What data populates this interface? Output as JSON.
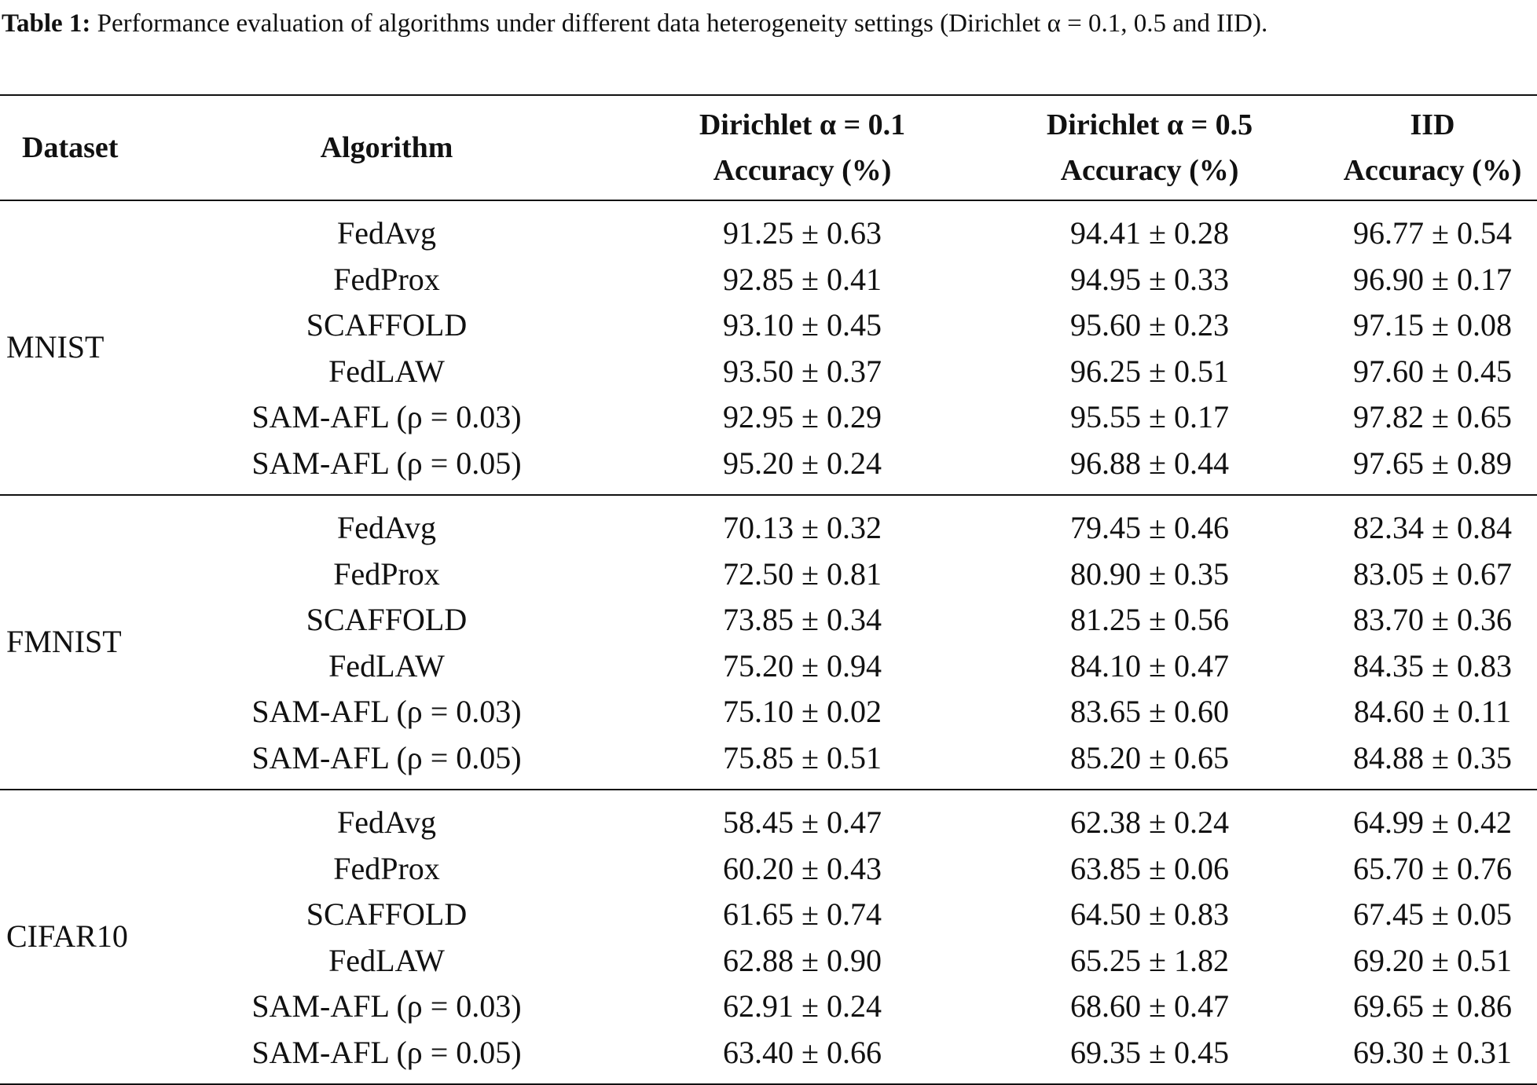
{
  "caption": {
    "label": "Table 1:",
    "text": "Performance evaluation of algorithms under different data heterogeneity settings (Dirichlet α = 0.1, 0.5 and IID)."
  },
  "table": {
    "headers": {
      "dataset": "Dataset",
      "algorithm": "Algorithm",
      "col1_line1": "Dirichlet α = 0.1",
      "col1_line2": "Accuracy (%)",
      "col2_line1": "Dirichlet α = 0.5",
      "col2_line2": "Accuracy (%)",
      "col3_line1": "IID",
      "col3_line2": "Accuracy (%)"
    },
    "groups": [
      {
        "dataset": "MNIST",
        "rows": [
          {
            "algorithm": "FedAvg",
            "a01": "91.25 ± 0.63",
            "a05": "94.41 ± 0.28",
            "iid": "96.77 ± 0.54"
          },
          {
            "algorithm": "FedProx",
            "a01": "92.85 ± 0.41",
            "a05": "94.95 ± 0.33",
            "iid": "96.90 ± 0.17"
          },
          {
            "algorithm": "SCAFFOLD",
            "a01": "93.10 ± 0.45",
            "a05": "95.60 ± 0.23",
            "iid": "97.15 ± 0.08"
          },
          {
            "algorithm": "FedLAW",
            "a01": "93.50 ± 0.37",
            "a05": "96.25 ± 0.51",
            "iid": "97.60 ± 0.45"
          },
          {
            "algorithm": "SAM-AFL (ρ = 0.03)",
            "a01": "92.95 ± 0.29",
            "a05": "95.55 ± 0.17",
            "iid": "97.82 ± 0.65"
          },
          {
            "algorithm": "SAM-AFL (ρ = 0.05)",
            "a01": "95.20 ± 0.24",
            "a05": "96.88 ± 0.44",
            "iid": "97.65 ± 0.89"
          }
        ]
      },
      {
        "dataset": "FMNIST",
        "rows": [
          {
            "algorithm": "FedAvg",
            "a01": "70.13 ± 0.32",
            "a05": "79.45 ± 0.46",
            "iid": "82.34 ± 0.84"
          },
          {
            "algorithm": "FedProx",
            "a01": "72.50 ± 0.81",
            "a05": "80.90 ± 0.35",
            "iid": "83.05 ± 0.67"
          },
          {
            "algorithm": "SCAFFOLD",
            "a01": "73.85 ± 0.34",
            "a05": "81.25 ± 0.56",
            "iid": "83.70 ± 0.36"
          },
          {
            "algorithm": "FedLAW",
            "a01": "75.20 ± 0.94",
            "a05": "84.10 ± 0.47",
            "iid": "84.35 ± 0.83"
          },
          {
            "algorithm": "SAM-AFL (ρ = 0.03)",
            "a01": "75.10 ± 0.02",
            "a05": "83.65 ± 0.60",
            "iid": "84.60 ± 0.11"
          },
          {
            "algorithm": "SAM-AFL (ρ = 0.05)",
            "a01": "75.85 ± 0.51",
            "a05": "85.20 ± 0.65",
            "iid": "84.88 ± 0.35"
          }
        ]
      },
      {
        "dataset": "CIFAR10",
        "rows": [
          {
            "algorithm": "FedAvg",
            "a01": "58.45 ± 0.47",
            "a05": "62.38 ± 0.24",
            "iid": "64.99 ± 0.42"
          },
          {
            "algorithm": "FedProx",
            "a01": "60.20 ± 0.43",
            "a05": "63.85 ± 0.06",
            "iid": "65.70 ± 0.76"
          },
          {
            "algorithm": "SCAFFOLD",
            "a01": "61.65 ± 0.74",
            "a05": "64.50 ± 0.83",
            "iid": "67.45 ± 0.05"
          },
          {
            "algorithm": "FedLAW",
            "a01": "62.88 ± 0.90",
            "a05": "65.25 ± 1.82",
            "iid": "69.20 ± 0.51"
          },
          {
            "algorithm": "SAM-AFL (ρ = 0.03)",
            "a01": "62.91 ± 0.24",
            "a05": "68.60 ± 0.47",
            "iid": "69.65 ± 0.86"
          },
          {
            "algorithm": "SAM-AFL (ρ = 0.05)",
            "a01": "63.40 ± 0.66",
            "a05": "69.35 ± 0.45",
            "iid": "69.30 ± 0.31"
          }
        ]
      }
    ]
  }
}
